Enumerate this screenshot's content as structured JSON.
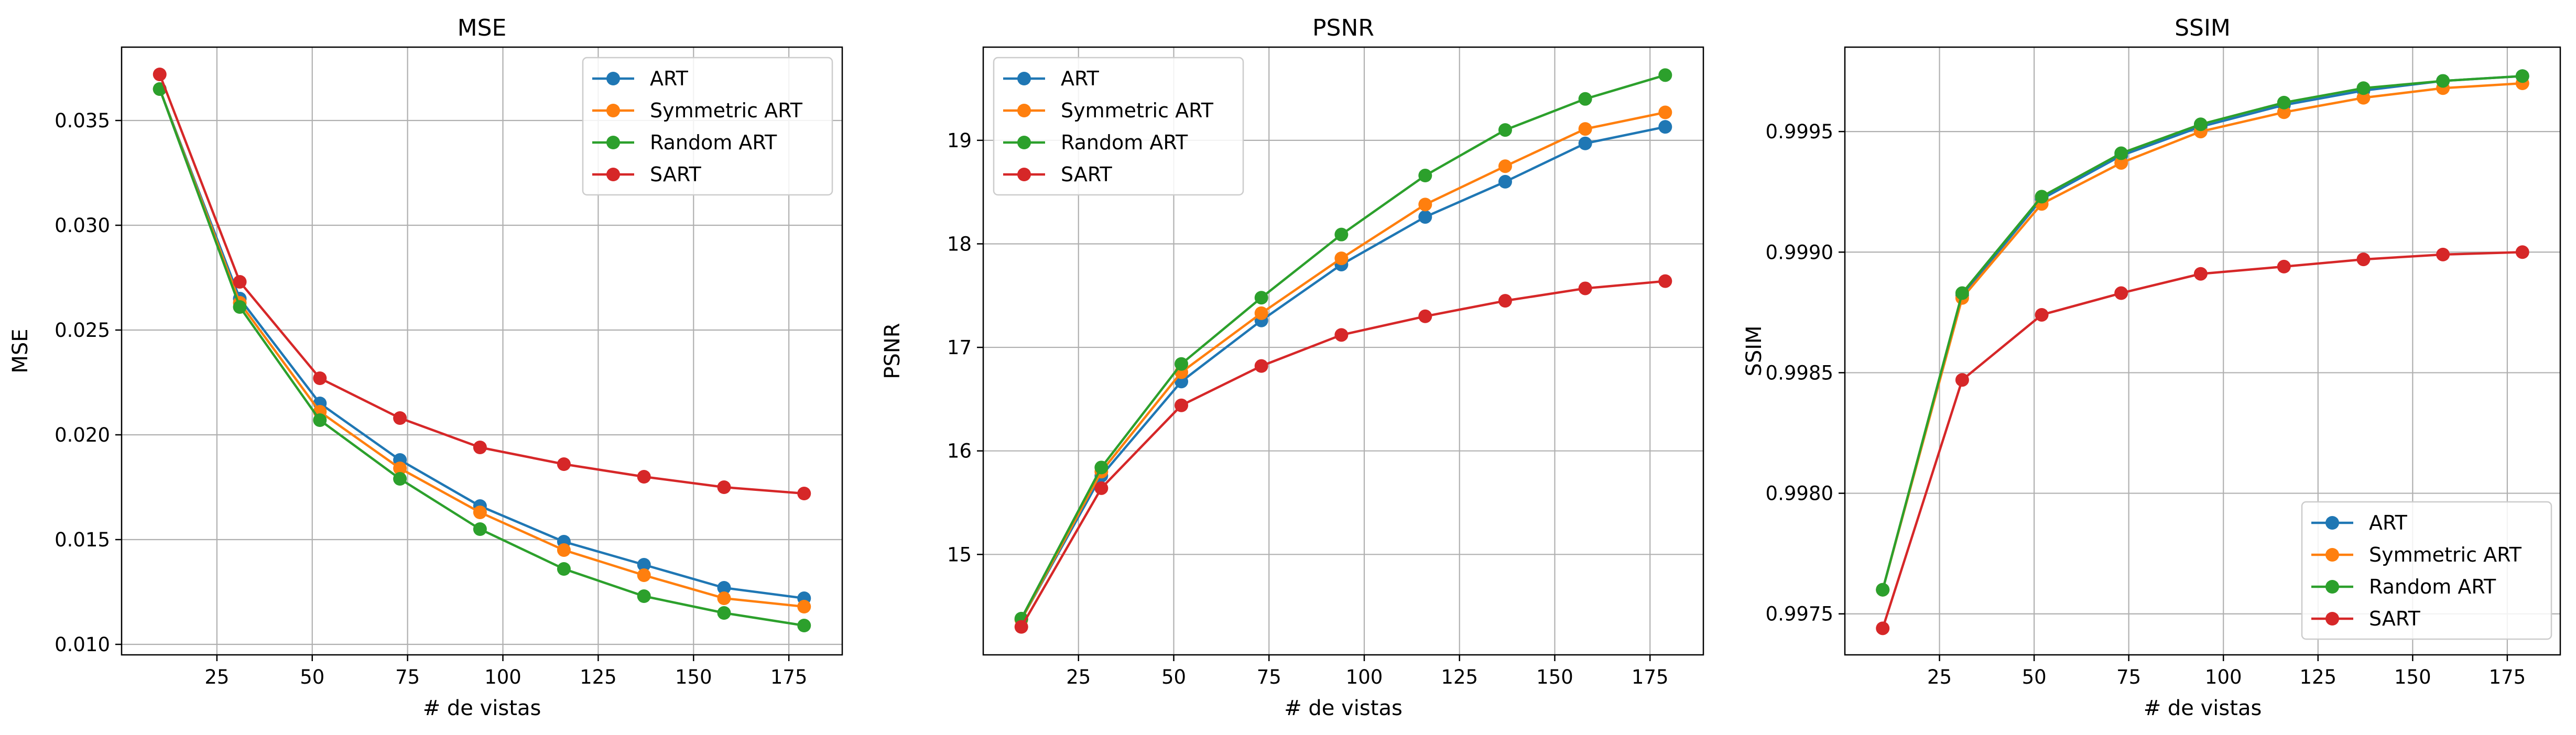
{
  "chart_data": [
    {
      "type": "line",
      "title": "MSE",
      "xlabel": "# de vistas",
      "ylabel": "MSE",
      "x": [
        10,
        31,
        52,
        73,
        94,
        116,
        137,
        158,
        179
      ],
      "xlim": [
        0,
        189
      ],
      "ylim": [
        0.0095,
        0.0385
      ],
      "xticks": [
        25,
        50,
        75,
        100,
        125,
        150,
        175
      ],
      "yticks": [
        0.01,
        0.015,
        0.02,
        0.025,
        0.03,
        0.035
      ],
      "ytick_labels": [
        "0.010",
        "0.015",
        "0.020",
        "0.025",
        "0.030",
        "0.035"
      ],
      "grid": true,
      "legend": "upper-right",
      "series": [
        {
          "name": "ART",
          "color": "#1f77b4",
          "values": [
            0.0365,
            0.0265,
            0.0215,
            0.0188,
            0.0166,
            0.0149,
            0.0138,
            0.0127,
            0.0122
          ]
        },
        {
          "name": "Symmetric ART",
          "color": "#ff7f0e",
          "values": [
            0.0365,
            0.0263,
            0.0211,
            0.0184,
            0.0163,
            0.0145,
            0.0133,
            0.0122,
            0.0118
          ]
        },
        {
          "name": "Random ART",
          "color": "#2ca02c",
          "values": [
            0.0365,
            0.0261,
            0.0207,
            0.0179,
            0.0155,
            0.0136,
            0.0123,
            0.0115,
            0.0109
          ]
        },
        {
          "name": "SART",
          "color": "#d62728",
          "values": [
            0.0372,
            0.0273,
            0.0227,
            0.0208,
            0.0194,
            0.0186,
            0.018,
            0.0175,
            0.0172
          ]
        }
      ]
    },
    {
      "type": "line",
      "title": "PSNR",
      "xlabel": "# de vistas",
      "ylabel": "PSNR",
      "x": [
        10,
        31,
        52,
        73,
        94,
        116,
        137,
        158,
        179
      ],
      "xlim": [
        0,
        189
      ],
      "ylim": [
        14.03,
        19.9
      ],
      "xticks": [
        25,
        50,
        75,
        100,
        125,
        150,
        175
      ],
      "yticks": [
        15,
        16,
        17,
        18,
        19
      ],
      "ytick_labels": [
        "15",
        "16",
        "17",
        "18",
        "19"
      ],
      "grid": true,
      "legend": "upper-left",
      "series": [
        {
          "name": "ART",
          "color": "#1f77b4",
          "values": [
            14.37,
            15.76,
            16.67,
            17.26,
            17.8,
            18.26,
            18.6,
            18.97,
            19.13
          ]
        },
        {
          "name": "Symmetric ART",
          "color": "#ff7f0e",
          "values": [
            14.37,
            15.8,
            16.76,
            17.33,
            17.86,
            18.38,
            18.75,
            19.11,
            19.27
          ]
        },
        {
          "name": "Random ART",
          "color": "#2ca02c",
          "values": [
            14.38,
            15.84,
            16.84,
            17.48,
            18.09,
            18.66,
            19.1,
            19.4,
            19.63
          ]
        },
        {
          "name": "SART",
          "color": "#d62728",
          "values": [
            14.3,
            15.64,
            16.44,
            16.82,
            17.12,
            17.3,
            17.45,
            17.57,
            17.64
          ]
        }
      ]
    },
    {
      "type": "line",
      "title": "SSIM",
      "xlabel": "# de vistas",
      "ylabel": "SSIM",
      "x": [
        10,
        31,
        52,
        73,
        94,
        116,
        137,
        158,
        179
      ],
      "xlim": [
        0,
        189
      ],
      "ylim": [
        0.99733,
        0.99985
      ],
      "xticks": [
        25,
        50,
        75,
        100,
        125,
        150,
        175
      ],
      "yticks": [
        0.9975,
        0.998,
        0.9985,
        0.999,
        0.9995
      ],
      "ytick_labels": [
        "0.9975",
        "0.9980",
        "0.9985",
        "0.9990",
        "0.9995"
      ],
      "grid": true,
      "legend": "lower-right",
      "series": [
        {
          "name": "ART",
          "color": "#1f77b4",
          "values": [
            0.9976,
            0.99882,
            0.99922,
            0.9994,
            0.99952,
            0.99961,
            0.99967,
            0.99971,
            0.99973
          ]
        },
        {
          "name": "Symmetric ART",
          "color": "#ff7f0e",
          "values": [
            0.9976,
            0.99881,
            0.9992,
            0.99937,
            0.9995,
            0.99958,
            0.99964,
            0.99968,
            0.9997
          ]
        },
        {
          "name": "Random ART",
          "color": "#2ca02c",
          "values": [
            0.9976,
            0.99883,
            0.99923,
            0.99941,
            0.99953,
            0.99962,
            0.99968,
            0.99971,
            0.99973
          ]
        },
        {
          "name": "SART",
          "color": "#d62728",
          "values": [
            0.99744,
            0.99847,
            0.99874,
            0.99883,
            0.99891,
            0.99894,
            0.99897,
            0.99899,
            0.999
          ]
        }
      ]
    }
  ]
}
